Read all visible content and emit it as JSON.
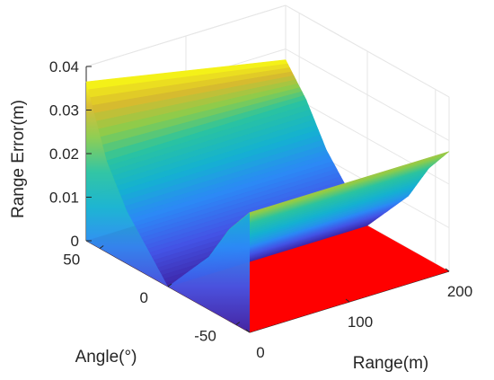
{
  "chart_data": {
    "type": "surface",
    "title": "",
    "xlabel": "Range(m)",
    "ylabel": "Angle(°)",
    "zlabel": "Range Error(m)",
    "xlim": [
      0,
      200
    ],
    "ylim": [
      -60,
      60
    ],
    "zlim": [
      0,
      0.04
    ],
    "x_ticks": [
      "0",
      "100",
      "200"
    ],
    "y_ticks": [
      "-50",
      "0",
      "50"
    ],
    "z_ticks": [
      "0",
      "0.01",
      "0.02",
      "0.03",
      "0.04"
    ],
    "grid": true,
    "colormap": "parula",
    "floor_plane_color": "#ff0000",
    "surface_profile": {
      "range_m": [
        0,
        100,
        200
      ],
      "angle_deg": [
        -60,
        -45,
        -30,
        0,
        30,
        45,
        60
      ],
      "error_at_range_0": [
        0.0275,
        0.021,
        0.012,
        0.0,
        0.012,
        0.021,
        0.0365
      ],
      "error_at_range_200": [
        0.0275,
        0.021,
        0.012,
        0.0,
        0.012,
        0.021,
        0.0275
      ]
    }
  }
}
